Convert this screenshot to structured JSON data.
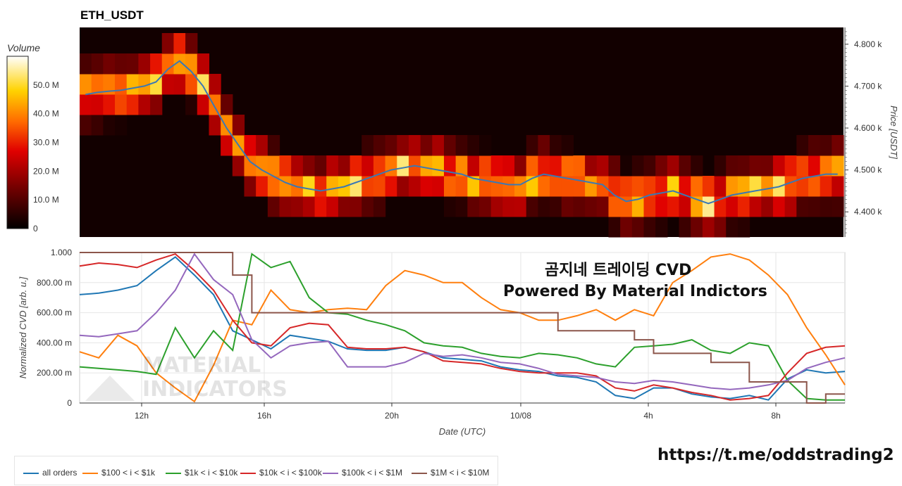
{
  "title": "ETH_USDT",
  "colorbar": {
    "title": "Volume",
    "ticks": [
      "50.0 M",
      "40.0 M",
      "30.0 M",
      "20.0 M",
      "10.0 M",
      "0"
    ]
  },
  "overlay": {
    "line1": "곰지네 트레이딩 CVD",
    "line2": "Powered By Material Indictors"
  },
  "watermark": {
    "line1": "MATERIAL",
    "line2": "INDICATORS"
  },
  "link": "https://t.me/oddstrading2",
  "chart_data": [
    {
      "type": "heatmap",
      "title": "ETH_USDT",
      "ylabel": "Price [USDT]",
      "ylim": [
        4340,
        4840
      ],
      "yticks": [
        "4.800 k",
        "4.700 k",
        "4.600 k",
        "4.500 k",
        "4.400 k"
      ],
      "colorbar_title": "Volume",
      "colorbar_range": [
        0,
        60
      ],
      "price_line_color": "#3a78b5",
      "price": [
        4680,
        4685,
        4688,
        4690,
        4695,
        4700,
        4710,
        4740,
        4760,
        4735,
        4700,
        4650,
        4600,
        4560,
        4520,
        4500,
        4485,
        4470,
        4460,
        4455,
        4450,
        4455,
        4460,
        4470,
        4480,
        4490,
        4500,
        4505,
        4510,
        4505,
        4500,
        4495,
        4490,
        4480,
        4475,
        4470,
        4465,
        4465,
        4480,
        4490,
        4485,
        4480,
        4475,
        4470,
        4465,
        4440,
        4425,
        4430,
        4440,
        4445,
        4450,
        4440,
        4430,
        4420,
        4430,
        4440,
        4445,
        4450,
        4455,
        4460,
        4470,
        4480,
        4485,
        4490,
        4490
      ]
    },
    {
      "type": "line",
      "xlabel": "Date (UTC)",
      "ylabel": "Normalized CVD [arb. u.]",
      "ylim": [
        0,
        1
      ],
      "yticks": [
        "1.000",
        "800.00 m",
        "600.00 m",
        "400.00 m",
        "200.00 m",
        "0"
      ],
      "xticks": [
        "12h",
        "16h",
        "20h",
        "10/08",
        "4h",
        "8h"
      ],
      "series": [
        {
          "name": "all orders",
          "color": "#1f77b4",
          "values": [
            0.72,
            0.73,
            0.75,
            0.78,
            0.88,
            0.97,
            0.85,
            0.72,
            0.48,
            0.42,
            0.36,
            0.45,
            0.43,
            0.41,
            0.36,
            0.35,
            0.35,
            0.37,
            0.34,
            0.3,
            0.29,
            0.28,
            0.24,
            0.22,
            0.21,
            0.18,
            0.17,
            0.14,
            0.05,
            0.03,
            0.1,
            0.1,
            0.06,
            0.04,
            0.03,
            0.05,
            0.02,
            0.16,
            0.22,
            0.2,
            0.21
          ]
        },
        {
          "name": "$100 < i < $1k",
          "color": "#ff7f0e",
          "values": [
            0.34,
            0.3,
            0.45,
            0.38,
            0.2,
            0.1,
            0.01,
            0.25,
            0.55,
            0.52,
            0.75,
            0.62,
            0.6,
            0.62,
            0.63,
            0.62,
            0.78,
            0.88,
            0.85,
            0.8,
            0.8,
            0.7,
            0.62,
            0.6,
            0.55,
            0.55,
            0.58,
            0.62,
            0.55,
            0.62,
            0.58,
            0.8,
            0.88,
            0.97,
            0.99,
            0.95,
            0.85,
            0.72,
            0.5,
            0.32,
            0.12
          ]
        },
        {
          "name": "$1k < i < $10k",
          "color": "#2ca02c",
          "values": [
            0.24,
            0.23,
            0.22,
            0.21,
            0.19,
            0.5,
            0.3,
            0.48,
            0.35,
            0.99,
            0.9,
            0.94,
            0.7,
            0.6,
            0.59,
            0.55,
            0.52,
            0.48,
            0.4,
            0.38,
            0.37,
            0.33,
            0.31,
            0.3,
            0.33,
            0.32,
            0.3,
            0.26,
            0.24,
            0.37,
            0.38,
            0.39,
            0.42,
            0.35,
            0.33,
            0.4,
            0.38,
            0.15,
            0.03,
            0.02,
            0.02
          ]
        },
        {
          "name": "$10k < i < $100k",
          "color": "#d62728",
          "values": [
            0.91,
            0.93,
            0.92,
            0.9,
            0.95,
            0.99,
            0.88,
            0.75,
            0.55,
            0.4,
            0.38,
            0.5,
            0.53,
            0.52,
            0.37,
            0.36,
            0.36,
            0.37,
            0.34,
            0.28,
            0.27,
            0.26,
            0.23,
            0.21,
            0.2,
            0.2,
            0.2,
            0.18,
            0.1,
            0.08,
            0.12,
            0.1,
            0.07,
            0.05,
            0.02,
            0.03,
            0.05,
            0.2,
            0.33,
            0.37,
            0.38
          ]
        },
        {
          "name": "$100k < i < $1M",
          "color": "#9467bd",
          "values": [
            0.45,
            0.44,
            0.46,
            0.48,
            0.6,
            0.75,
            0.99,
            0.82,
            0.72,
            0.42,
            0.3,
            0.38,
            0.4,
            0.41,
            0.24,
            0.24,
            0.24,
            0.27,
            0.33,
            0.31,
            0.32,
            0.3,
            0.27,
            0.26,
            0.23,
            0.19,
            0.18,
            0.17,
            0.14,
            0.13,
            0.15,
            0.14,
            0.12,
            0.1,
            0.09,
            0.1,
            0.12,
            0.15,
            0.23,
            0.27,
            0.3
          ]
        },
        {
          "name": "$1M < i < $10M",
          "color": "#8c564b",
          "values": [
            1.0,
            1.0,
            1.0,
            1.0,
            1.0,
            1.0,
            1.0,
            1.0,
            0.85,
            0.6,
            0.6,
            0.6,
            0.6,
            0.6,
            0.6,
            0.6,
            0.6,
            0.6,
            0.6,
            0.6,
            0.6,
            0.6,
            0.6,
            0.6,
            0.6,
            0.48,
            0.48,
            0.48,
            0.48,
            0.42,
            0.33,
            0.33,
            0.33,
            0.27,
            0.27,
            0.14,
            0.14,
            0.14,
            0.0,
            0.06,
            0.06
          ]
        }
      ]
    }
  ]
}
